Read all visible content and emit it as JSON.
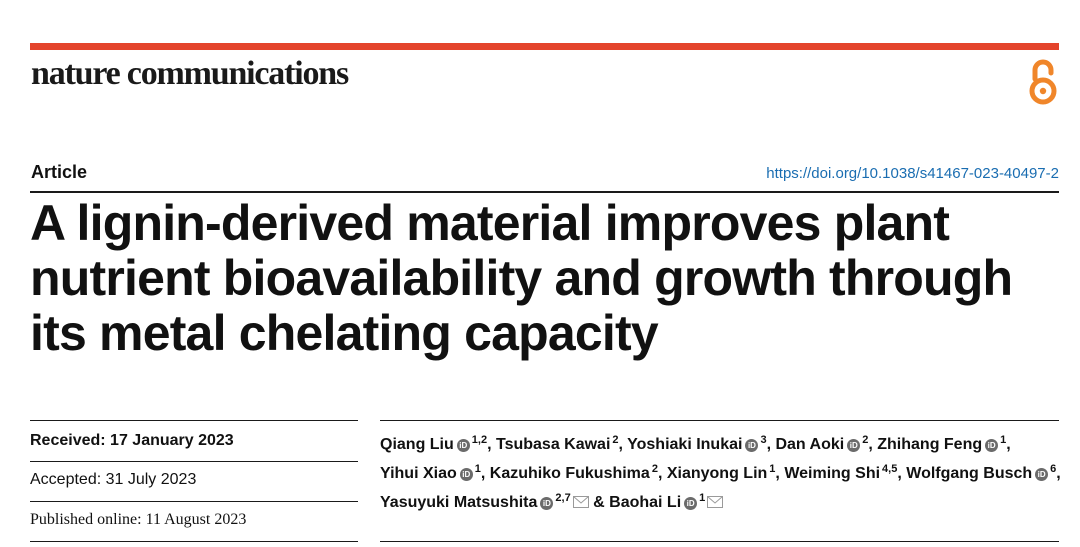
{
  "journal": {
    "name": "nature communications"
  },
  "article": {
    "type": "Article",
    "doi": "https://doi.org/10.1038/s41467-023-40497-2",
    "title": "A lignin-derived material improves plant nutrient bioavailability and growth through its metal chelating capacity"
  },
  "dates": {
    "received_label": "Received:",
    "received": "17 January 2023",
    "accepted_label": "Accepted:",
    "accepted": "31 July 2023",
    "published_label": "Published online:",
    "published": "11 August 2023"
  },
  "authors": [
    {
      "name": "Qiang Liu",
      "orcid": true,
      "aff": "1,2",
      "mail": false,
      "sep": ","
    },
    {
      "name": "Tsubasa Kawai",
      "orcid": false,
      "aff": "2",
      "mail": false,
      "sep": ","
    },
    {
      "name": "Yoshiaki Inukai",
      "orcid": true,
      "aff": "3",
      "mail": false,
      "sep": ","
    },
    {
      "name": "Dan Aoki",
      "orcid": true,
      "aff": "2",
      "mail": false,
      "sep": ","
    },
    {
      "name": "Zhihang Feng",
      "orcid": true,
      "aff": "1",
      "mail": false,
      "sep": ","
    },
    {
      "name": "Yihui Xiao",
      "orcid": true,
      "aff": "1",
      "mail": false,
      "sep": ","
    },
    {
      "name": "Kazuhiko Fukushima",
      "orcid": false,
      "aff": "2",
      "mail": false,
      "sep": ","
    },
    {
      "name": "Xianyong Lin",
      "orcid": false,
      "aff": "1",
      "mail": false,
      "sep": ","
    },
    {
      "name": "Weiming Shi",
      "orcid": false,
      "aff": "4,5",
      "mail": false,
      "sep": ","
    },
    {
      "name": "Wolfgang Busch",
      "orcid": true,
      "aff": "6",
      "mail": false,
      "sep": ","
    },
    {
      "name": "Yasuyuki Matsushita",
      "orcid": true,
      "aff": "2,7",
      "mail": true,
      "sep": " &"
    },
    {
      "name": "Baohai Li",
      "orcid": true,
      "aff": "1",
      "mail": true,
      "sep": ""
    }
  ],
  "icons": {
    "open_access": "open-access-icon",
    "orcid": "orcid-icon",
    "email": "email-icon"
  },
  "colors": {
    "accent_bar": "#e4442c",
    "open_access": "#f0862a",
    "doi_link": "#1a6db1"
  }
}
